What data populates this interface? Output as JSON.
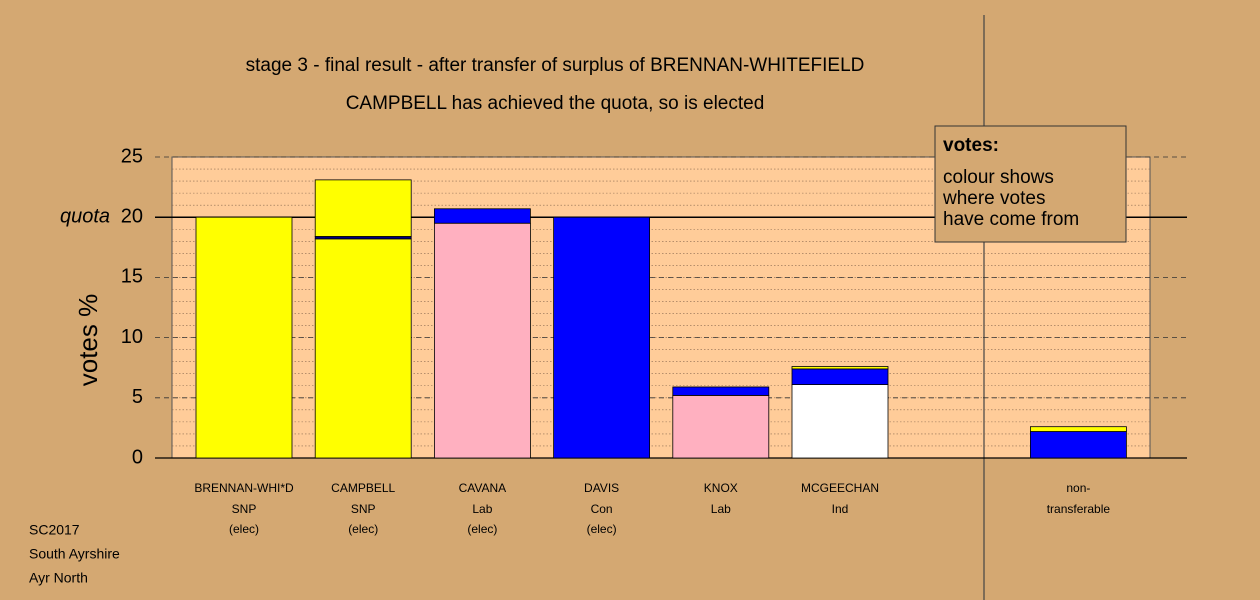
{
  "chart_data": {
    "type": "bar",
    "stacked": true,
    "title": "stage 3 - final result - after transfer of surplus of BRENNAN-WHITEFIELD",
    "subtitle": "CAMPBELL has achieved the quota, so is elected",
    "ylabel": "votes %",
    "ylim": [
      0,
      25
    ],
    "yticks": [
      0,
      5,
      10,
      15,
      20,
      25
    ],
    "minor_grid_step": 1,
    "quota": 20,
    "quota_label": "quota",
    "categories": [
      "BRENNAN-WHI*D",
      "CAMPBELL",
      "CAVANA",
      "DAVIS",
      "KNOX",
      "MCGEECHAN",
      null,
      "non-"
    ],
    "parties": [
      "SNP",
      "SNP",
      "Lab",
      "Con",
      "Lab",
      "Ind",
      null,
      "transferable"
    ],
    "status": [
      "(elec)",
      "(elec)",
      "(elec)",
      "(elec)",
      null,
      null,
      null,
      null
    ],
    "stacks": [
      [
        {
          "color": "#ffff00",
          "value": 20
        }
      ],
      [
        {
          "color": "#ffff00",
          "value": 18.2
        },
        {
          "color": "#000080",
          "value": 0.2
        },
        {
          "color": "#ffff00",
          "value": 4.7
        }
      ],
      [
        {
          "color": "#ffb0c0",
          "value": 19.5
        },
        {
          "color": "#0000ff",
          "value": 1.2
        }
      ],
      [
        {
          "color": "#0000ff",
          "value": 20
        }
      ],
      [
        {
          "color": "#ffb0c0",
          "value": 5.2
        },
        {
          "color": "#0000ff",
          "value": 0.7
        }
      ],
      [
        {
          "color": "#ffffff",
          "value": 6.1
        },
        {
          "color": "#0000ff",
          "value": 1.3
        },
        {
          "color": "#ffff00",
          "value": 0.2
        }
      ],
      [],
      [
        {
          "color": "#0000ff",
          "value": 2.2
        },
        {
          "color": "#ffff00",
          "value": 0.4
        }
      ]
    ],
    "legend": {
      "title": "votes:",
      "lines": [
        "colour shows",
        "where votes",
        "have come from"
      ]
    }
  },
  "footer": [
    "SC2017",
    "South Ayrshire",
    "Ayr North"
  ]
}
